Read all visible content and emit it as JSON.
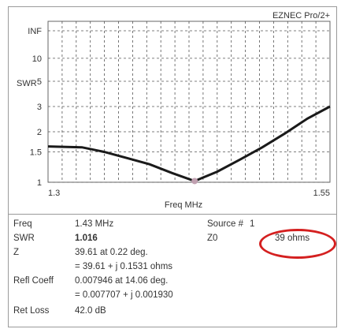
{
  "brand": "EZNEC Pro/2+",
  "chart_data": {
    "type": "line",
    "ylabel": "SWR",
    "xlabel": "Freq MHz",
    "x_range": [
      1.3,
      1.55
    ],
    "x_tick_labels": [
      "1.3",
      "1.55"
    ],
    "y_scale": "swr",
    "y_ticks": [
      {
        "label": "1",
        "value": 1
      },
      {
        "label": "1.5",
        "value": 1.5
      },
      {
        "label": "2",
        "value": 2
      },
      {
        "label": "3",
        "value": 3
      },
      {
        "label": "5",
        "value": 5
      },
      {
        "label": "10",
        "value": 10
      },
      {
        "label": "INF",
        "value": "inf"
      }
    ],
    "grid": true,
    "series": [
      {
        "points": [
          {
            "x": 1.3,
            "y": 1.62
          },
          {
            "x": 1.33,
            "y": 1.6
          },
          {
            "x": 1.35,
            "y": 1.5
          },
          {
            "x": 1.37,
            "y": 1.38
          },
          {
            "x": 1.39,
            "y": 1.27
          },
          {
            "x": 1.41,
            "y": 1.13
          },
          {
            "x": 1.43,
            "y": 1.016
          },
          {
            "x": 1.45,
            "y": 1.15
          },
          {
            "x": 1.47,
            "y": 1.35
          },
          {
            "x": 1.49,
            "y": 1.6
          },
          {
            "x": 1.51,
            "y": 1.95
          },
          {
            "x": 1.53,
            "y": 2.45
          },
          {
            "x": 1.55,
            "y": 3.0
          }
        ]
      }
    ],
    "marker": {
      "x": 1.43,
      "y": 1.016
    },
    "line_color": "#1a1a1a",
    "grid_color": "#555555"
  },
  "info": {
    "freq_label": "Freq",
    "freq_value": "1.43 MHz",
    "source_label": "Source #",
    "source_value": "1",
    "swr_label": "SWR",
    "swr_value": "1.016",
    "z0_label": "Z0",
    "z0_value": "39 ohms",
    "z_label": "Z",
    "z_value_1": "39.61 at 0.22 deg.",
    "z_value_2": "= 39.61 + j 0.1531 ohms",
    "refl_label": "Refl Coeff",
    "refl_value_1": "0.007946 at 14.06 deg.",
    "refl_value_2": "= 0.007707 + j 0.001930",
    "retloss_label": "Ret Loss",
    "retloss_value": "42.0 dB"
  },
  "highlight_color": "#d42020"
}
